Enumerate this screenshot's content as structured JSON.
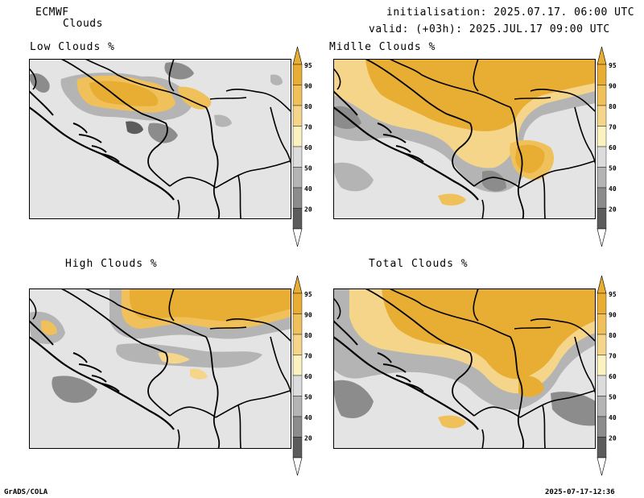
{
  "header": {
    "model": "ECMWF",
    "product": "Clouds",
    "init": "initialisation: 2025.07.17. 06:00 UTC",
    "valid": "valid: (+03h): 2025.JUL.17 09:00 UTC"
  },
  "panels": [
    {
      "id": "low",
      "title": "Low Clouds %"
    },
    {
      "id": "middle",
      "title": "Midlle Clouds %"
    },
    {
      "id": "high",
      "title": "High Clouds %"
    },
    {
      "id": "total",
      "title": "Total Clouds %"
    }
  ],
  "colorbar": {
    "ticks": [
      "95",
      "90",
      "80",
      "70",
      "60",
      "50",
      "40",
      "20"
    ],
    "colors": [
      "#e8ad33",
      "#f0c05a",
      "#f5d58a",
      "#fbf2bf",
      "#dcdcdc",
      "#b4b4b4",
      "#8c8c8c",
      "#5c5c5c"
    ]
  },
  "colors": {
    "map_background": "#e4e4e4",
    "clear": "#e4e4e4"
  },
  "footer": {
    "left": "GrADS/COLA",
    "right": "2025-07-17-12:36"
  }
}
